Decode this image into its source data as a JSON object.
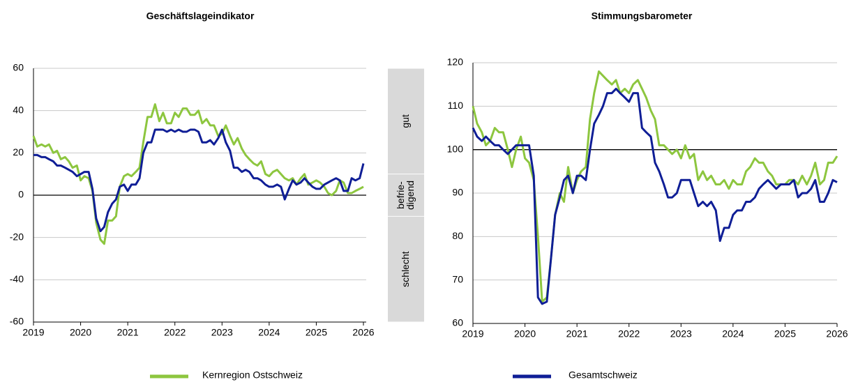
{
  "chart_data": [
    {
      "type": "line",
      "title": "Geschäftslageindikator",
      "x": [
        2019,
        2019.08,
        2019.17,
        2019.25,
        2019.33,
        2019.42,
        2019.5,
        2019.58,
        2019.67,
        2019.75,
        2019.83,
        2019.92,
        2020,
        2020.08,
        2020.17,
        2020.25,
        2020.33,
        2020.42,
        2020.5,
        2020.58,
        2020.67,
        2020.75,
        2020.83,
        2020.92,
        2021,
        2021.08,
        2021.17,
        2021.25,
        2021.33,
        2021.42,
        2021.5,
        2021.58,
        2021.67,
        2021.75,
        2021.83,
        2021.92,
        2022,
        2022.08,
        2022.17,
        2022.25,
        2022.33,
        2022.42,
        2022.5,
        2022.58,
        2022.67,
        2022.75,
        2022.83,
        2022.92,
        2023,
        2023.08,
        2023.17,
        2023.25,
        2023.33,
        2023.42,
        2023.5,
        2023.58,
        2023.67,
        2023.75,
        2023.83,
        2023.92,
        2024,
        2024.08,
        2024.17,
        2024.25,
        2024.33,
        2024.42,
        2024.5,
        2024.58,
        2024.67,
        2024.75,
        2024.83,
        2024.92,
        2025,
        2025.08,
        2025.17,
        2025.25,
        2025.33,
        2025.42,
        2025.5,
        2025.58,
        2025.67,
        2025.75,
        2025.83,
        2025.92,
        2026
      ],
      "series": [
        {
          "name": "Kernregion Ostschweiz",
          "color": "#8dc63f",
          "values": [
            28,
            23,
            24,
            23,
            24,
            20,
            21,
            17,
            18,
            16,
            13,
            14,
            7,
            9,
            8,
            2,
            -13,
            -21,
            -23,
            -12,
            -12,
            -10,
            4,
            9,
            10,
            9,
            11,
            13,
            25,
            37,
            37,
            43,
            35,
            39,
            34,
            34,
            39,
            37,
            41,
            41,
            38,
            38,
            40,
            34,
            36,
            33,
            33,
            28,
            29,
            33,
            28,
            24,
            27,
            22,
            19,
            17,
            15,
            14,
            16,
            10,
            9,
            11,
            12,
            10,
            8,
            7,
            8,
            5,
            8,
            10,
            5,
            6,
            7,
            6,
            4,
            1,
            0,
            2,
            7,
            6,
            1,
            1,
            2,
            3,
            4
          ]
        },
        {
          "name": "Gesamtschweiz",
          "color": "#0f1e96",
          "values": [
            19,
            19,
            18,
            18,
            17,
            16,
            14,
            14,
            13,
            12,
            11,
            9,
            10,
            11,
            11,
            3,
            -11,
            -17,
            -15,
            -8,
            -4,
            -2,
            4,
            5,
            2,
            5,
            5,
            8,
            20,
            25,
            25,
            31,
            31,
            31,
            30,
            31,
            30,
            31,
            30,
            30,
            31,
            31,
            30,
            25,
            25,
            26,
            24,
            27,
            31,
            25,
            21,
            13,
            13,
            11,
            12,
            11,
            8,
            8,
            7,
            5,
            4,
            4,
            5,
            4,
            -2,
            3,
            7,
            5,
            6,
            8,
            6,
            4,
            3,
            3,
            5,
            6,
            7,
            8,
            7,
            2,
            2,
            8,
            7,
            8,
            15
          ]
        }
      ],
      "xlim": [
        2019,
        2026
      ],
      "xticks": [
        2019,
        2020,
        2021,
        2022,
        2023,
        2024,
        2025,
        2026
      ],
      "ylim": [
        -60,
        60
      ],
      "yticks": [
        60,
        40,
        20,
        0,
        -20,
        -40,
        -60
      ],
      "grid": true,
      "hline": 0,
      "bands": [
        {
          "label": [
            "gut"
          ],
          "range": [
            10,
            60
          ]
        },
        {
          "label": [
            "befrie-",
            "digend"
          ],
          "range": [
            -10,
            10
          ]
        },
        {
          "label": [
            "schlecht"
          ],
          "range": [
            -60,
            -10
          ]
        }
      ]
    },
    {
      "type": "line",
      "title": "Stimmungsbarometer",
      "x": [
        2019,
        2019.08,
        2019.17,
        2019.25,
        2019.33,
        2019.42,
        2019.5,
        2019.58,
        2019.67,
        2019.75,
        2019.83,
        2019.92,
        2020,
        2020.08,
        2020.17,
        2020.25,
        2020.33,
        2020.42,
        2020.5,
        2020.58,
        2020.67,
        2020.75,
        2020.83,
        2020.92,
        2021,
        2021.08,
        2021.17,
        2021.25,
        2021.33,
        2021.42,
        2021.5,
        2021.58,
        2021.67,
        2021.75,
        2021.83,
        2021.92,
        2022,
        2022.08,
        2022.17,
        2022.25,
        2022.33,
        2022.42,
        2022.5,
        2022.58,
        2022.67,
        2022.75,
        2022.83,
        2022.92,
        2023,
        2023.08,
        2023.17,
        2023.25,
        2023.33,
        2023.42,
        2023.5,
        2023.58,
        2023.67,
        2023.75,
        2023.83,
        2023.92,
        2024,
        2024.08,
        2024.17,
        2024.25,
        2024.33,
        2024.42,
        2024.5,
        2024.58,
        2024.67,
        2024.75,
        2024.83,
        2024.92,
        2025,
        2025.08,
        2025.17,
        2025.25,
        2025.33,
        2025.42,
        2025.5,
        2025.58,
        2025.67,
        2025.75,
        2025.83,
        2025.92,
        2026
      ],
      "series": [
        {
          "color": "#8dc63f",
          "values": [
            110,
            106,
            104,
            101,
            102,
            105,
            104,
            104,
            100,
            96,
            100,
            103,
            98,
            97,
            93,
            80,
            65,
            66,
            75,
            85,
            90,
            88,
            96,
            90,
            93,
            95,
            96,
            107,
            113,
            118,
            117,
            116,
            115,
            116,
            113,
            114,
            113,
            115,
            116,
            114,
            112,
            109,
            107,
            101,
            101,
            100,
            99,
            100,
            98,
            101,
            98,
            99,
            93,
            95,
            93,
            94,
            92,
            92,
            93,
            91,
            93,
            92,
            92,
            95,
            96,
            98,
            97,
            97,
            95,
            94,
            92,
            92,
            92,
            93,
            93,
            92,
            94,
            92,
            94,
            97,
            92,
            93,
            97,
            97,
            98.5
          ]
        },
        {
          "color": "#0f1e96",
          "values": [
            105,
            103,
            102,
            103,
            102,
            101,
            101,
            100,
            99,
            100,
            101,
            101,
            101,
            101,
            94,
            66,
            64.5,
            65,
            75,
            85,
            89,
            93,
            94,
            90,
            94,
            94,
            93,
            100,
            106,
            108,
            110,
            113,
            113,
            114,
            113,
            112,
            111,
            113,
            113,
            105,
            104,
            103,
            97,
            95,
            92,
            89,
            89,
            90,
            93,
            93,
            93,
            90,
            87,
            88,
            87,
            88,
            86,
            79,
            82,
            82,
            85,
            86,
            86,
            88,
            88,
            89,
            91,
            92,
            93,
            92,
            91,
            92,
            92,
            92,
            93,
            89,
            90,
            90,
            91,
            93,
            88,
            88,
            90,
            93,
            92.5
          ]
        }
      ],
      "xlim": [
        2019,
        2026
      ],
      "xticks": [
        2019,
        2020,
        2021,
        2022,
        2023,
        2024,
        2025,
        2026
      ],
      "ylim": [
        60,
        120
      ],
      "yticks": [
        120,
        110,
        100,
        90,
        80,
        70,
        60
      ],
      "grid": true,
      "hline": 100
    }
  ]
}
